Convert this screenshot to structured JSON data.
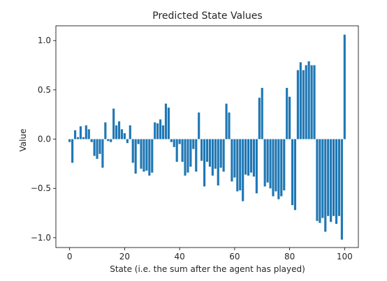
{
  "chart_data": {
    "type": "bar",
    "title": "Predicted State Values",
    "xlabel": "State (i.e. the sum after the agent has played)",
    "ylabel": "Value",
    "xlim": [
      -5,
      105
    ],
    "ylim": [
      -1.1,
      1.15
    ],
    "xticks": [
      0,
      20,
      40,
      60,
      80,
      100
    ],
    "yticks": [
      -1.0,
      -0.5,
      0.0,
      0.5,
      1.0
    ],
    "xtick_labels": [
      "0",
      "20",
      "40",
      "60",
      "80",
      "100"
    ],
    "ytick_labels": [
      "−1.0",
      "−0.5",
      "0.0",
      "0.5",
      "1.0"
    ],
    "grid": false,
    "bar_color": "#1f77b4",
    "x": [
      0,
      1,
      2,
      3,
      4,
      5,
      6,
      7,
      8,
      9,
      10,
      11,
      12,
      13,
      14,
      15,
      16,
      17,
      18,
      19,
      20,
      21,
      22,
      23,
      24,
      25,
      26,
      27,
      28,
      29,
      30,
      31,
      32,
      33,
      34,
      35,
      36,
      37,
      38,
      39,
      40,
      41,
      42,
      43,
      44,
      45,
      46,
      47,
      48,
      49,
      50,
      51,
      52,
      53,
      54,
      55,
      56,
      57,
      58,
      59,
      60,
      61,
      62,
      63,
      64,
      65,
      66,
      67,
      68,
      69,
      70,
      71,
      72,
      73,
      74,
      75,
      76,
      77,
      78,
      79,
      80,
      81,
      82,
      83,
      84,
      85,
      86,
      87,
      88,
      89,
      90,
      91,
      92,
      93,
      94,
      95,
      96,
      97,
      98,
      99,
      100
    ],
    "values": [
      -0.03,
      -0.24,
      0.09,
      0.02,
      0.13,
      0.02,
      0.14,
      0.1,
      -0.03,
      -0.17,
      -0.2,
      -0.15,
      -0.29,
      0.17,
      -0.02,
      -0.03,
      0.31,
      0.14,
      0.18,
      0.1,
      0.06,
      -0.04,
      0.14,
      -0.24,
      -0.35,
      -0.05,
      -0.3,
      -0.33,
      -0.32,
      -0.37,
      -0.34,
      0.17,
      0.16,
      0.2,
      0.14,
      0.36,
      0.32,
      -0.03,
      -0.08,
      -0.23,
      -0.05,
      -0.23,
      -0.37,
      -0.34,
      -0.28,
      -0.1,
      -0.33,
      0.27,
      -0.22,
      -0.48,
      -0.23,
      -0.28,
      -0.37,
      -0.3,
      -0.47,
      -0.29,
      -0.33,
      0.36,
      0.27,
      -0.43,
      -0.39,
      -0.53,
      -0.52,
      -0.63,
      -0.36,
      -0.37,
      -0.34,
      -0.38,
      -0.55,
      0.42,
      0.52,
      -0.48,
      -0.44,
      -0.5,
      -0.58,
      -0.53,
      -0.61,
      -0.58,
      -0.52,
      0.52,
      0.43,
      -0.67,
      -0.72,
      0.7,
      0.78,
      0.7,
      0.75,
      0.79,
      0.75,
      0.75,
      -0.83,
      -0.85,
      -0.8,
      -0.94,
      -0.78,
      -0.84,
      -0.78,
      -0.86,
      -0.78,
      -1.02,
      1.06
    ]
  }
}
